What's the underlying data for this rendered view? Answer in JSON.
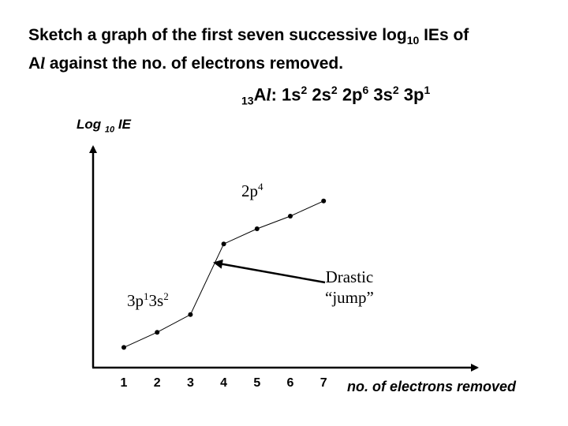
{
  "title": {
    "line1_pre": "Sketch a graph of the first seven successive log",
    "line1_sub": "10",
    "line1_post": " IEs of",
    "line2_a": "A",
    "line2_l": "l",
    "line2_post": " against the no. of electrons removed."
  },
  "config": {
    "atomic_number": "13",
    "symbol_a": "A",
    "symbol_l": "l",
    "colon": ":  1s",
    "s1": "2",
    "t2": " 2s",
    "s2": "2",
    "t3": " 2p",
    "s3": "6",
    "t4": " 3s",
    "s4": "2",
    "t5": " 3p",
    "s5": "1"
  },
  "annotations": {
    "upper_base": "2p",
    "upper_sup": "4",
    "lower_a": "3p",
    "lower_a_sup": "1",
    "lower_b": "3s",
    "lower_b_sup": "2",
    "jump_line1": "Drastic",
    "jump_line2": "“jump”"
  },
  "chart_data": {
    "type": "scatter",
    "xlabel": "no. of electrons removed",
    "ylabel": "Log 10 IE",
    "categories": [
      "1",
      "2",
      "3",
      "4",
      "5",
      "6",
      "7"
    ],
    "x": [
      1,
      2,
      3,
      4,
      5,
      6,
      7
    ],
    "y": [
      0.8,
      1.4,
      2.1,
      4.9,
      5.5,
      6.0,
      6.6
    ],
    "ylim": [
      0,
      10
    ]
  }
}
